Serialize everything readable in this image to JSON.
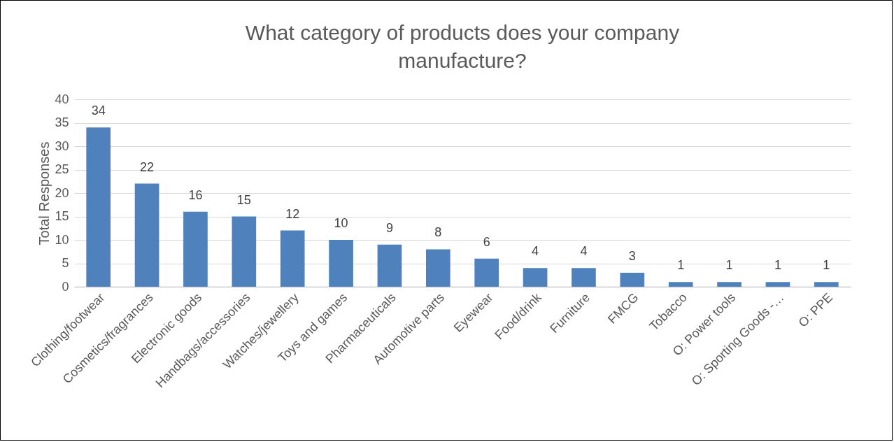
{
  "chart_data": {
    "type": "bar",
    "title": "What category of products does your company manufacture?",
    "ylabel": "Total Responses",
    "categories": [
      "Clothing/footwear",
      "Cosmetics/fragrances",
      "Electronic goods",
      "Handbags/accessories",
      "Watches/jewellery",
      "Toys and games",
      "Pharmaceuticals",
      "Automotive parts",
      "Eyewear",
      "Food/drink",
      "Furniture",
      "FMCG",
      "Tobacco",
      "O: Power tools",
      "O: Sporting Goods -…",
      "O: PPE"
    ],
    "values": [
      34,
      22,
      16,
      15,
      12,
      10,
      9,
      8,
      6,
      4,
      4,
      3,
      1,
      1,
      1,
      1
    ],
    "color": "#4f81bd",
    "ylim": [
      0,
      40
    ],
    "yticks": [
      0,
      5,
      10,
      15,
      20,
      25,
      30,
      35,
      40
    ],
    "grid": "y",
    "data_labels": true
  }
}
